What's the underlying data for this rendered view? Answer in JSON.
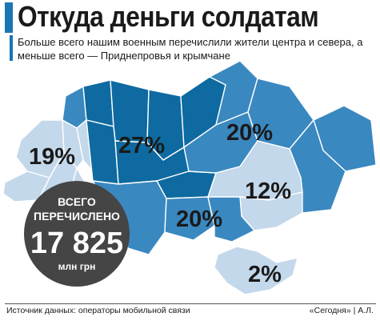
{
  "header": {
    "title": "Откуда деньги солдатам",
    "subtitle": "Больше всего нашим военным перечислили жители центра и севера, а меньше всего — Приднепровья и крымчане"
  },
  "colors": {
    "accent": "#1a75b4",
    "dark_blue": "#0e6aa0",
    "mid_blue": "#3a88c0",
    "light_blue": "#c3d8ea",
    "circle": "#454545"
  },
  "map": {
    "labels": {
      "west": "19%",
      "center": "27%",
      "east": "20%",
      "dnipro": "12%",
      "south": "20%",
      "crimea": "2%"
    }
  },
  "total": {
    "line1": "ВСЕГО",
    "line2": "ПЕРЕЧИСЛЕНО",
    "value": "17 825",
    "unit": "млн грн"
  },
  "footer": {
    "source": "Источник данных: операторы мобильной связи",
    "credit": "«Сегодня» | А.Л."
  }
}
